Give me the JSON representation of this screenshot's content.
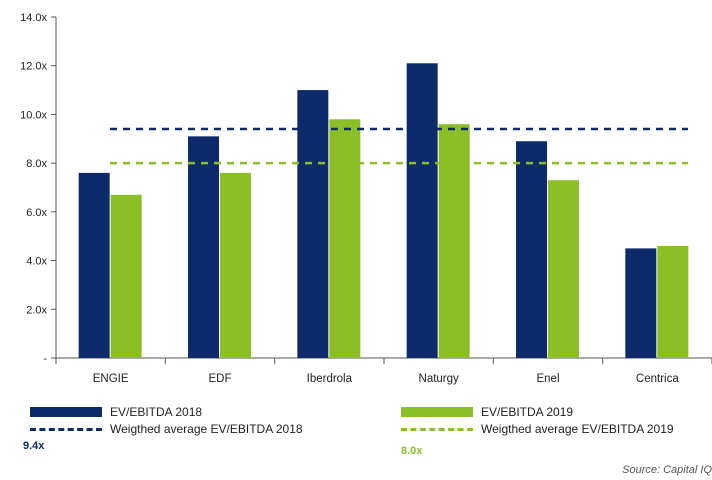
{
  "chart_data": {
    "type": "bar",
    "categories": [
      "ENGIE",
      "EDF",
      "Iberdrola",
      "Naturgy",
      "Enel",
      "Centrica"
    ],
    "series": [
      {
        "name": "EV/EBITDA 2018",
        "values": [
          7.6,
          9.1,
          11.0,
          12.1,
          8.9,
          4.5
        ],
        "color": "#0d2b6b"
      },
      {
        "name": "EV/EBITDA 2019",
        "values": [
          6.7,
          7.6,
          9.8,
          9.6,
          7.3,
          4.6
        ],
        "color": "#8cbf26"
      }
    ],
    "reference_lines": [
      {
        "name": "Weigthed average EV/EBITDA 2018",
        "value": 9.4,
        "label": "9.4x",
        "color": "#0d2b6b",
        "style": "dashed"
      },
      {
        "name": "Weigthed average EV/EBITDA 2019",
        "value": 8.0,
        "label": "8.0x",
        "color": "#8cbf26",
        "style": "dashed"
      }
    ],
    "y_ticks": [
      "-",
      "2.0x",
      "4.0x",
      "6.0x",
      "8.0x",
      "10.0x",
      "12.0x",
      "14.0x"
    ],
    "ylim": [
      0,
      14
    ],
    "grid": false,
    "legend_position": "bottom"
  },
  "source": "Source: Capital IQ"
}
